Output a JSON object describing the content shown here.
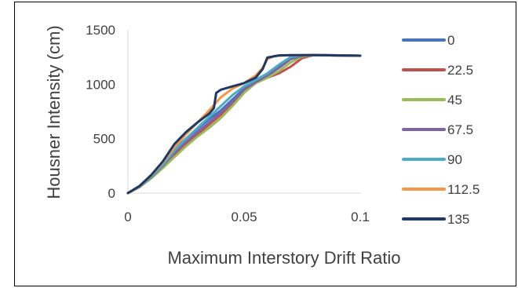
{
  "chart_data": {
    "type": "line",
    "title": "",
    "xlabel": "Maximum Interstory Drift Ratio",
    "ylabel": "Housner Intensity (cm)",
    "xlim": [
      0,
      0.1
    ],
    "ylim": [
      0,
      1500
    ],
    "xticks": [
      0,
      0.05,
      0.1
    ],
    "xtick_labels": [
      "0",
      "0.05",
      "0.1"
    ],
    "yticks": [
      0,
      500,
      1000,
      1500
    ],
    "ytick_labels": [
      "0",
      "500",
      "1000",
      "1500"
    ],
    "grid": false,
    "legend_position": "right",
    "series": [
      {
        "name": "0",
        "color": "#4472C4",
        "points": [
          [
            0,
            0
          ],
          [
            0.005,
            60
          ],
          [
            0.01,
            150
          ],
          [
            0.015,
            260
          ],
          [
            0.02,
            400
          ],
          [
            0.025,
            500
          ],
          [
            0.03,
            590
          ],
          [
            0.035,
            680
          ],
          [
            0.04,
            760
          ],
          [
            0.045,
            860
          ],
          [
            0.05,
            960
          ],
          [
            0.055,
            1020
          ],
          [
            0.06,
            1080
          ],
          [
            0.065,
            1160
          ],
          [
            0.07,
            1240
          ],
          [
            0.075,
            1265
          ],
          [
            0.08,
            1270
          ],
          [
            0.1,
            1262
          ]
        ]
      },
      {
        "name": "22.5",
        "color": "#C0504D",
        "points": [
          [
            0,
            0
          ],
          [
            0.005,
            55
          ],
          [
            0.01,
            140
          ],
          [
            0.015,
            240
          ],
          [
            0.02,
            350
          ],
          [
            0.025,
            450
          ],
          [
            0.03,
            540
          ],
          [
            0.035,
            630
          ],
          [
            0.04,
            720
          ],
          [
            0.045,
            830
          ],
          [
            0.05,
            950
          ],
          [
            0.055,
            1010
          ],
          [
            0.06,
            1060
          ],
          [
            0.065,
            1100
          ],
          [
            0.07,
            1160
          ],
          [
            0.075,
            1240
          ],
          [
            0.08,
            1268
          ],
          [
            0.1,
            1262
          ]
        ]
      },
      {
        "name": "45",
        "color": "#9BBB59",
        "points": [
          [
            0,
            0
          ],
          [
            0.005,
            55
          ],
          [
            0.01,
            135
          ],
          [
            0.015,
            230
          ],
          [
            0.02,
            330
          ],
          [
            0.025,
            430
          ],
          [
            0.03,
            520
          ],
          [
            0.035,
            600
          ],
          [
            0.04,
            690
          ],
          [
            0.045,
            800
          ],
          [
            0.05,
            920
          ],
          [
            0.055,
            1010
          ],
          [
            0.06,
            1060
          ],
          [
            0.065,
            1120
          ],
          [
            0.07,
            1200
          ],
          [
            0.075,
            1255
          ],
          [
            0.08,
            1268
          ],
          [
            0.1,
            1262
          ]
        ]
      },
      {
        "name": "67.5",
        "color": "#8064A2",
        "points": [
          [
            0,
            0
          ],
          [
            0.005,
            60
          ],
          [
            0.01,
            145
          ],
          [
            0.015,
            250
          ],
          [
            0.02,
            370
          ],
          [
            0.025,
            470
          ],
          [
            0.03,
            560
          ],
          [
            0.035,
            650
          ],
          [
            0.04,
            740
          ],
          [
            0.045,
            840
          ],
          [
            0.05,
            950
          ],
          [
            0.055,
            1020
          ],
          [
            0.06,
            1080
          ],
          [
            0.065,
            1150
          ],
          [
            0.07,
            1230
          ],
          [
            0.075,
            1262
          ],
          [
            0.08,
            1268
          ],
          [
            0.1,
            1262
          ]
        ]
      },
      {
        "name": "90",
        "color": "#4BACC6",
        "points": [
          [
            0,
            0
          ],
          [
            0.005,
            62
          ],
          [
            0.01,
            150
          ],
          [
            0.015,
            260
          ],
          [
            0.02,
            390
          ],
          [
            0.025,
            500
          ],
          [
            0.03,
            600
          ],
          [
            0.035,
            700
          ],
          [
            0.04,
            800
          ],
          [
            0.045,
            900
          ],
          [
            0.05,
            980
          ],
          [
            0.055,
            1040
          ],
          [
            0.06,
            1100
          ],
          [
            0.065,
            1180
          ],
          [
            0.07,
            1250
          ],
          [
            0.075,
            1266
          ],
          [
            0.08,
            1268
          ],
          [
            0.1,
            1262
          ]
        ]
      },
      {
        "name": "112.5",
        "color": "#F79646",
        "points": [
          [
            0,
            0
          ],
          [
            0.005,
            65
          ],
          [
            0.01,
            160
          ],
          [
            0.015,
            280
          ],
          [
            0.02,
            420
          ],
          [
            0.025,
            540
          ],
          [
            0.03,
            650
          ],
          [
            0.035,
            760
          ],
          [
            0.04,
            880
          ],
          [
            0.045,
            960
          ],
          [
            0.05,
            1010
          ],
          [
            0.055,
            1080
          ],
          [
            0.058,
            1150
          ],
          [
            0.06,
            1230
          ],
          [
            0.063,
            1260
          ],
          [
            0.07,
            1266
          ],
          [
            0.08,
            1268
          ],
          [
            0.1,
            1262
          ]
        ]
      },
      {
        "name": "135",
        "color": "#1F3864",
        "points": [
          [
            0,
            0
          ],
          [
            0.005,
            65
          ],
          [
            0.01,
            165
          ],
          [
            0.015,
            290
          ],
          [
            0.02,
            450
          ],
          [
            0.025,
            560
          ],
          [
            0.03,
            650
          ],
          [
            0.035,
            730
          ],
          [
            0.037,
            780
          ],
          [
            0.038,
            920
          ],
          [
            0.04,
            950
          ],
          [
            0.045,
            980
          ],
          [
            0.05,
            1010
          ],
          [
            0.055,
            1060
          ],
          [
            0.058,
            1140
          ],
          [
            0.06,
            1245
          ],
          [
            0.065,
            1265
          ],
          [
            0.07,
            1268
          ],
          [
            0.08,
            1268
          ],
          [
            0.1,
            1262
          ]
        ]
      }
    ]
  }
}
